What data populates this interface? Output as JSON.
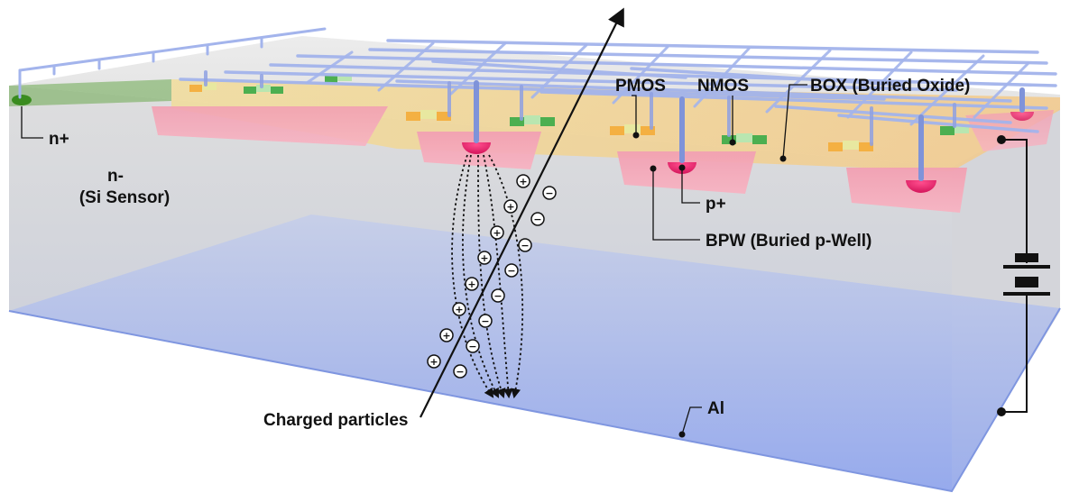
{
  "labels": {
    "n_plus": "n+",
    "n_minus": "n-",
    "si_sensor": "(Si Sensor)",
    "pmos": "PMOS",
    "nmos": "NMOS",
    "box": "BOX (Buried Oxide)",
    "p_plus": "p+",
    "bpw": "BPW (Buried p-Well)",
    "charged_particles": "Charged particles",
    "al": "Al"
  },
  "carriers": {
    "hole": "+",
    "electron": "−"
  },
  "colors": {
    "silicon": "#d9d9d9",
    "oxide": "#f2d27a",
    "p_well": "#f4a0b4",
    "p_plus": "#e8246e",
    "n_plus": "#3a8c1f",
    "aluminum": "#9fb3ec",
    "metal": "#a9b9ef"
  }
}
